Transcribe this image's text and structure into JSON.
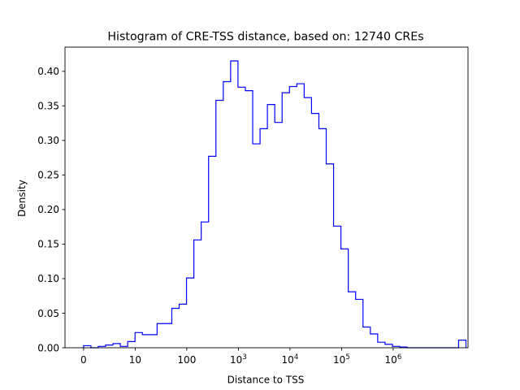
{
  "chart_data": {
    "type": "histogram",
    "title": "Histogram of CRE-TSS distance, based on: 12740 CREs",
    "xlabel": "Distance to TSS",
    "ylabel": "Density",
    "x_ticks": [
      {
        "value": 0,
        "base": "0",
        "exp": ""
      },
      {
        "value": 1,
        "base": "10",
        "exp": ""
      },
      {
        "value": 2,
        "base": "100",
        "exp": ""
      },
      {
        "value": 3,
        "base": "10",
        "exp": "3"
      },
      {
        "value": 4,
        "base": "10",
        "exp": "4"
      },
      {
        "value": 5,
        "base": "10",
        "exp": "5"
      },
      {
        "value": 6,
        "base": "10",
        "exp": "6"
      }
    ],
    "xlim": [
      -0.36,
      7.45
    ],
    "ylim": [
      0,
      0.435
    ],
    "y_ticks": [
      "0.00",
      "0.05",
      "0.10",
      "0.15",
      "0.20",
      "0.25",
      "0.30",
      "0.35",
      "0.40"
    ],
    "line_color": "#0000ff",
    "bin_start": 0,
    "bin_width": 0.1425,
    "densities": [
      0.003,
      0.0,
      0.002,
      0.004,
      0.006,
      0.002,
      0.009,
      0.022,
      0.019,
      0.019,
      0.035,
      0.035,
      0.057,
      0.063,
      0.101,
      0.156,
      0.182,
      0.277,
      0.358,
      0.385,
      0.415,
      0.377,
      0.372,
      0.295,
      0.317,
      0.352,
      0.326,
      0.369,
      0.378,
      0.382,
      0.362,
      0.339,
      0.317,
      0.266,
      0.176,
      0.143,
      0.081,
      0.07,
      0.03,
      0.02,
      0.008,
      0.005,
      0.002,
      0.001,
      0.0,
      0.0,
      0.0,
      0.0,
      0.0,
      0.0,
      0.0,
      0.011
    ]
  }
}
